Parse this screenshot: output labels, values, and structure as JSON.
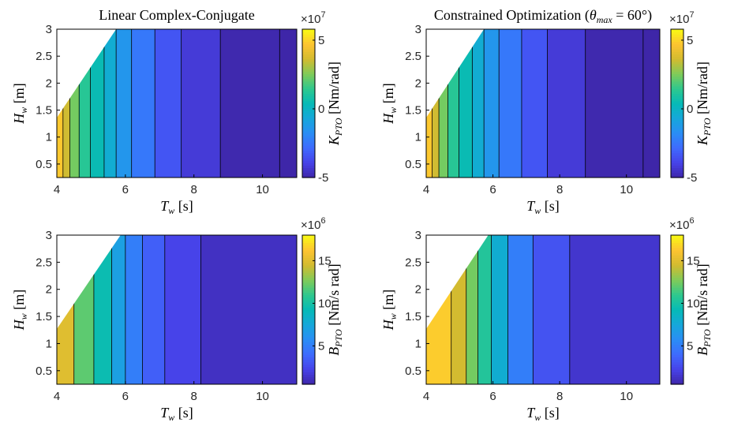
{
  "chart_data": [
    {
      "type": "heatmap",
      "subtype": "filled-contour",
      "title": "Linear Complex-Conjugate",
      "title_math": "",
      "xlabel": "T",
      "xlabel_sub": "w",
      "xlabel_unit": "[s]",
      "ylabel": "H",
      "ylabel_sub": "w",
      "ylabel_unit": "[m]",
      "xlim": [
        4,
        11
      ],
      "ylim": [
        0.25,
        3
      ],
      "xticks": [
        4,
        6,
        8,
        10
      ],
      "yticks": [
        0.5,
        1,
        1.5,
        2,
        2.5,
        3
      ],
      "ytick_labels": [
        "0.5",
        "1",
        "1.5",
        "2",
        "2.5",
        "3"
      ],
      "colorbar": {
        "label": "K",
        "label_sub": "PTO",
        "label_unit": "[Nm/rad]",
        "multiplier_base": "×10",
        "multiplier_exp": "7",
        "range": [
          -5,
          5.8
        ],
        "ticks": [
          -5,
          0,
          5
        ],
        "tick_labels": [
          "-5",
          "0",
          "5"
        ]
      },
      "breaking_limit": [
        [
          4.0,
          1.36
        ],
        [
          5.73,
          3.0
        ]
      ],
      "contour_levels_T": [
        4.18,
        4.38,
        4.65,
        4.98,
        5.38,
        5.73,
        6.18,
        6.86,
        7.63,
        8.77,
        10.5
      ],
      "band_values": [
        4.8,
        3.6,
        2.4,
        1.3,
        0.5,
        -0.4,
        -1.4,
        -2.4,
        -3.4,
        -4.2,
        -4.9,
        -5.0
      ]
    },
    {
      "type": "heatmap",
      "subtype": "filled-contour",
      "title": "Constrained Optimization (",
      "title_math": "θmax = 60°)",
      "xlabel": "T",
      "xlabel_sub": "w",
      "xlabel_unit": "[s]",
      "ylabel": "H",
      "ylabel_sub": "w",
      "ylabel_unit": "[m]",
      "xlim": [
        4,
        11
      ],
      "ylim": [
        0.25,
        3
      ],
      "xticks": [
        4,
        6,
        8,
        10
      ],
      "yticks": [
        0.5,
        1,
        1.5,
        2,
        2.5,
        3
      ],
      "ytick_labels": [
        "0.5",
        "1",
        "1.5",
        "2",
        "2.5",
        "3"
      ],
      "colorbar": {
        "label": "K",
        "label_sub": "PTO",
        "label_unit": "[Nm/rad]",
        "multiplier_base": "×10",
        "multiplier_exp": "7",
        "range": [
          -5,
          5.8
        ],
        "ticks": [
          -5,
          0,
          5
        ],
        "tick_labels": [
          "-5",
          "0",
          "5"
        ]
      },
      "breaking_limit": [
        [
          4.0,
          1.36
        ],
        [
          5.73,
          3.0
        ]
      ],
      "contour_levels_T": [
        4.18,
        4.38,
        4.65,
        4.98,
        5.38,
        5.73,
        6.18,
        6.86,
        7.63,
        8.77,
        10.5
      ],
      "band_values": [
        4.8,
        3.6,
        2.4,
        1.3,
        0.5,
        -0.4,
        -1.4,
        -2.4,
        -3.4,
        -4.2,
        -4.9,
        -5.0
      ]
    },
    {
      "type": "heatmap",
      "subtype": "filled-contour",
      "title": "",
      "title_math": "",
      "xlabel": "T",
      "xlabel_sub": "w",
      "xlabel_unit": "[s]",
      "ylabel": "H",
      "ylabel_sub": "w",
      "ylabel_unit": "[m]",
      "xlim": [
        4,
        11
      ],
      "ylim": [
        0.25,
        3
      ],
      "xticks": [
        4,
        6,
        8,
        10
      ],
      "yticks": [
        0.5,
        1,
        1.5,
        2,
        2.5,
        3
      ],
      "ytick_labels": [
        "0.5",
        "1",
        "1.5",
        "2",
        "2.5",
        "3"
      ],
      "colorbar": {
        "label": "B",
        "label_sub": "PTO",
        "label_unit": "[Nm/s rad]",
        "multiplier_base": "×10",
        "multiplier_exp": "6",
        "range": [
          0.5,
          18
        ],
        "ticks": [
          5,
          10,
          15
        ],
        "tick_labels": [
          "5",
          "10",
          "15"
        ]
      },
      "breaking_limit": [
        [
          4.0,
          1.27
        ],
        [
          5.86,
          3.0
        ]
      ],
      "contour_levels_T": [
        4.5,
        5.08,
        5.6,
        6.0,
        6.5,
        7.15,
        8.2
      ],
      "band_values": [
        15.0,
        12.0,
        9.5,
        7.0,
        5.0,
        3.5,
        2.3,
        1.2
      ]
    },
    {
      "type": "heatmap",
      "subtype": "filled-contour",
      "title": "",
      "title_math": "",
      "xlabel": "T",
      "xlabel_sub": "w",
      "xlabel_unit": "[s]",
      "ylabel": "H",
      "ylabel_sub": "w",
      "ylabel_unit": "[m]",
      "xlim": [
        4,
        11
      ],
      "ylim": [
        0.25,
        3
      ],
      "xticks": [
        4,
        6,
        8,
        10
      ],
      "yticks": [
        0.5,
        1,
        1.5,
        2,
        2.5,
        3
      ],
      "ytick_labels": [
        "0.5",
        "1",
        "1.5",
        "2",
        "2.5",
        "3"
      ],
      "colorbar": {
        "label": "B",
        "label_sub": "PTO",
        "label_unit": "[Nm/s rad]",
        "multiplier_base": "×10",
        "multiplier_exp": "6",
        "range": [
          0.5,
          18
        ],
        "ticks": [
          5,
          10,
          15
        ],
        "tick_labels": [
          "5",
          "10",
          "15"
        ]
      },
      "breaking_limit": [
        [
          4.0,
          1.27
        ],
        [
          5.86,
          3.0
        ]
      ],
      "contour_levels_T": [
        4.75,
        5.2,
        5.55,
        5.95,
        6.45,
        7.2,
        8.3
      ],
      "band_values": [
        16.5,
        14.5,
        12.5,
        10.5,
        8.0,
        5.0,
        3.0,
        1.5
      ]
    }
  ]
}
